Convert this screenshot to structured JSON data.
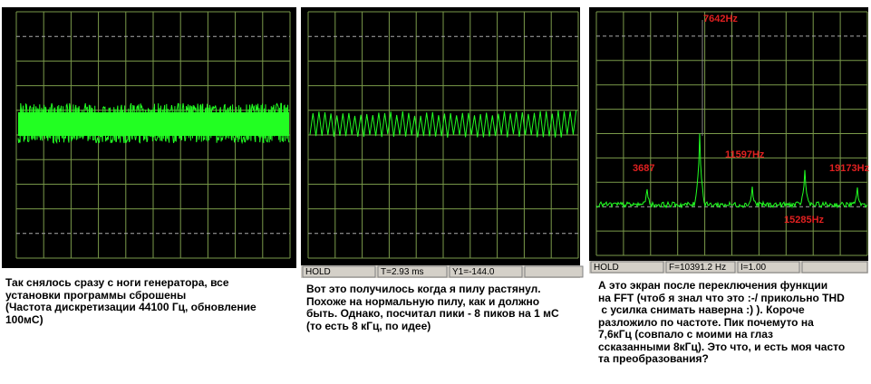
{
  "panels": [
    {
      "caption": [
        "Так снялось сразу с ноги генератора, все",
        "установки программы сброшены",
        "(Частота дискретизации 44100 Гц, обновление",
        "100мС)"
      ]
    },
    {
      "status": [
        "HOLD",
        "T=2.93 ms",
        "Y1=-144.0"
      ],
      "caption": [
        "Вот это получилось когда я пилу растянул.",
        "Похоже на нормальную пилу, как и должно",
        "быть. Однако, посчитал пики - 8 пиков на 1 мС",
        "(то есть 8 кГц, по идее)"
      ]
    },
    {
      "status": [
        "HOLD",
        "F=10391.2 Hz",
        "I=1.00"
      ],
      "peaks": [
        "7642Hz",
        "11597Hz",
        "3687",
        "19173Hz",
        "15285Hz"
      ],
      "caption": [
        "А это экран после переключения функции",
        "на FFT (чтоб я знал что это :-/ прикольно THD",
        " с усилка снимать наверна :) ). Короче",
        "разложило по частоте. Пик почемуто на",
        "7,6кГц (совпало с моими на глаз",
        "ссказанными 8кГц). Это что, и есть моя часто",
        "та преобразования?"
      ]
    }
  ]
}
